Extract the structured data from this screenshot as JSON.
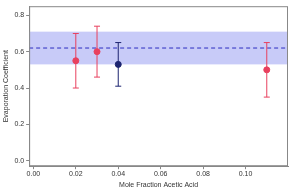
{
  "chart_data": {
    "type": "scatter",
    "x_label": "Mole Fraction Acetic Acid",
    "y_label": "Evaporation Coefficient",
    "xlim": [
      -0.002,
      0.12
    ],
    "xticks": [
      {
        "value": 0,
        "label": "0.00"
      },
      0.02,
      0.04,
      0.06,
      0.08,
      {
        "value": 0.1,
        "label": "0.10"
      }
    ],
    "ylim": [
      -0.03,
      0.85
    ],
    "yticks": [
      {
        "value": 0,
        "label": "0.0"
      },
      0.2,
      0.4,
      0.6,
      0.8
    ],
    "grid": false,
    "series": [
      {
        "color": "#e8405e",
        "marker": "circle",
        "x": [
          0.02,
          0.03,
          0.11
        ],
        "values": [
          0.55,
          0.6,
          0.5
        ],
        "error_low": [
          0.4,
          0.46,
          0.35
        ],
        "error_high": [
          0.7,
          0.74,
          0.65
        ]
      },
      {
        "color": "#1c2470",
        "marker": "circle",
        "x": [
          0.04
        ],
        "values": [
          0.53
        ],
        "error_low": [
          0.41
        ],
        "error_high": [
          0.65
        ]
      }
    ],
    "mean_line": {
      "value": 0.62,
      "color": "#2c2cc0",
      "line_style": "dashed"
    },
    "mean_band": {
      "low": 0.53,
      "high": 0.71,
      "color": "#b6baf6"
    }
  }
}
